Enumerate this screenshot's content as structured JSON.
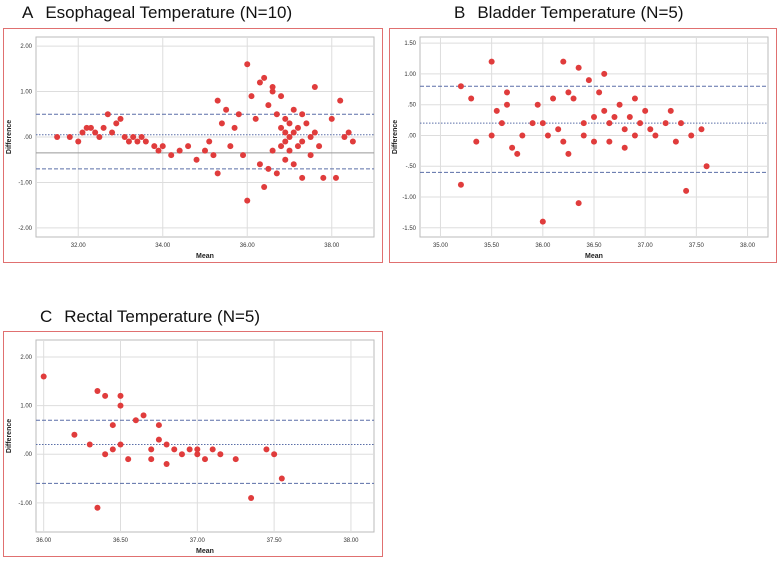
{
  "chart_data": [
    {
      "type": "scatter",
      "panel_letter": "A",
      "title": "Esophageal Temperature (N=10)",
      "xlabel": "Mean",
      "ylabel": "Difference",
      "xlim": [
        31.0,
        39.0
      ],
      "ylim": [
        -2.2,
        2.2
      ],
      "xticks": [
        32,
        34,
        36,
        38
      ],
      "xtick_labels": [
        "32.00",
        "34.00",
        "36.00",
        "38.00"
      ],
      "yticks": [
        2,
        1,
        0,
        -1,
        -2
      ],
      "ytick_labels": [
        "2.00",
        "1.00",
        ".00",
        "-1.00",
        "-2.00"
      ],
      "reference_lines": [
        {
          "y": 0.5,
          "style": "dashed",
          "color": "#5b6fa8"
        },
        {
          "y": 0.05,
          "style": "dotted",
          "color": "#5b6fa8"
        },
        {
          "y": -0.35,
          "style": "solid",
          "color": "#999999"
        },
        {
          "y": -0.7,
          "style": "dashed",
          "color": "#5b6fa8"
        }
      ],
      "point_color": "#e03c3c",
      "points": [
        [
          31.5,
          0.0
        ],
        [
          31.8,
          0.0
        ],
        [
          32.0,
          -0.1
        ],
        [
          32.1,
          0.1
        ],
        [
          32.2,
          0.2
        ],
        [
          32.3,
          0.2
        ],
        [
          32.4,
          0.1
        ],
        [
          32.5,
          0.0
        ],
        [
          32.6,
          0.2
        ],
        [
          32.7,
          0.5
        ],
        [
          32.8,
          0.1
        ],
        [
          32.9,
          0.3
        ],
        [
          33.0,
          0.4
        ],
        [
          33.1,
          0.0
        ],
        [
          33.2,
          -0.1
        ],
        [
          33.3,
          0.0
        ],
        [
          33.4,
          -0.1
        ],
        [
          33.5,
          0.0
        ],
        [
          33.6,
          -0.1
        ],
        [
          33.8,
          -0.2
        ],
        [
          33.9,
          -0.3
        ],
        [
          34.0,
          -0.2
        ],
        [
          34.2,
          -0.4
        ],
        [
          34.4,
          -0.3
        ],
        [
          34.6,
          -0.2
        ],
        [
          34.8,
          -0.5
        ],
        [
          35.0,
          -0.3
        ],
        [
          35.1,
          -0.1
        ],
        [
          35.2,
          -0.4
        ],
        [
          35.3,
          -0.8
        ],
        [
          35.3,
          0.8
        ],
        [
          35.4,
          0.3
        ],
        [
          35.5,
          0.6
        ],
        [
          35.6,
          -0.2
        ],
        [
          35.7,
          0.2
        ],
        [
          35.8,
          0.5
        ],
        [
          35.9,
          -0.4
        ],
        [
          36.0,
          1.6
        ],
        [
          36.0,
          -1.4
        ],
        [
          36.1,
          0.9
        ],
        [
          36.2,
          0.4
        ],
        [
          36.3,
          1.2
        ],
        [
          36.3,
          -0.6
        ],
        [
          36.4,
          1.3
        ],
        [
          36.4,
          -1.1
        ],
        [
          36.5,
          0.7
        ],
        [
          36.5,
          -0.7
        ],
        [
          36.6,
          1.0
        ],
        [
          36.6,
          1.1
        ],
        [
          36.6,
          -0.3
        ],
        [
          36.7,
          0.5
        ],
        [
          36.7,
          -0.8
        ],
        [
          36.8,
          0.9
        ],
        [
          36.8,
          0.2
        ],
        [
          36.8,
          -0.2
        ],
        [
          36.9,
          0.4
        ],
        [
          36.9,
          0.1
        ],
        [
          36.9,
          -0.1
        ],
        [
          36.9,
          -0.5
        ],
        [
          37.0,
          0.0
        ],
        [
          37.0,
          0.3
        ],
        [
          37.0,
          -0.3
        ],
        [
          37.1,
          0.6
        ],
        [
          37.1,
          0.1
        ],
        [
          37.1,
          -0.6
        ],
        [
          37.2,
          0.2
        ],
        [
          37.2,
          -0.2
        ],
        [
          37.3,
          0.5
        ],
        [
          37.3,
          -0.1
        ],
        [
          37.3,
          -0.9
        ],
        [
          37.4,
          0.3
        ],
        [
          37.5,
          0.0
        ],
        [
          37.5,
          -0.4
        ],
        [
          37.6,
          1.1
        ],
        [
          37.6,
          0.1
        ],
        [
          37.7,
          -0.2
        ],
        [
          37.8,
          -0.9
        ],
        [
          38.0,
          0.4
        ],
        [
          38.1,
          -0.9
        ],
        [
          38.2,
          0.8
        ],
        [
          38.3,
          0.0
        ],
        [
          38.4,
          0.1
        ],
        [
          38.5,
          -0.1
        ]
      ]
    },
    {
      "type": "scatter",
      "panel_letter": "B",
      "title": "Bladder Temperature (N=5)",
      "xlabel": "Mean",
      "ylabel": "Difference",
      "xlim": [
        34.8,
        38.2
      ],
      "ylim": [
        -1.65,
        1.6
      ],
      "xticks": [
        35.0,
        35.5,
        36.0,
        36.5,
        37.0,
        37.5,
        38.0
      ],
      "xtick_labels": [
        "35.00",
        "35.50",
        "36.00",
        "36.50",
        "37.00",
        "37.50",
        "38.00"
      ],
      "yticks": [
        1.5,
        1.0,
        0.5,
        0.0,
        -0.5,
        -1.0,
        -1.5
      ],
      "ytick_labels": [
        "1.50",
        "1.00",
        ".50",
        ".00",
        "-.50",
        "-1.00",
        "-1.50"
      ],
      "reference_lines": [
        {
          "y": 0.8,
          "style": "dashed",
          "color": "#5b6fa8"
        },
        {
          "y": 0.2,
          "style": "dotted",
          "color": "#5b6fa8"
        },
        {
          "y": -0.6,
          "style": "dashed",
          "color": "#5b6fa8"
        }
      ],
      "point_color": "#e03c3c",
      "points": [
        [
          35.2,
          0.8
        ],
        [
          35.2,
          -0.8
        ],
        [
          35.3,
          0.6
        ],
        [
          35.35,
          -0.1
        ],
        [
          35.5,
          1.2
        ],
        [
          35.5,
          0.0
        ],
        [
          35.55,
          0.4
        ],
        [
          35.6,
          0.2
        ],
        [
          35.65,
          0.7
        ],
        [
          35.65,
          0.5
        ],
        [
          35.7,
          -0.2
        ],
        [
          35.75,
          -0.3
        ],
        [
          35.8,
          0.0
        ],
        [
          35.9,
          0.2
        ],
        [
          35.95,
          0.5
        ],
        [
          36.0,
          -1.4
        ],
        [
          36.0,
          0.2
        ],
        [
          36.05,
          0.0
        ],
        [
          36.1,
          0.6
        ],
        [
          36.15,
          0.1
        ],
        [
          36.2,
          1.2
        ],
        [
          36.2,
          -0.1
        ],
        [
          36.25,
          0.7
        ],
        [
          36.25,
          -0.3
        ],
        [
          36.3,
          0.6
        ],
        [
          36.35,
          1.1
        ],
        [
          36.35,
          -1.1
        ],
        [
          36.4,
          0.2
        ],
        [
          36.4,
          0.0
        ],
        [
          36.45,
          0.9
        ],
        [
          36.5,
          0.3
        ],
        [
          36.5,
          -0.1
        ],
        [
          36.55,
          0.7
        ],
        [
          36.6,
          1.0
        ],
        [
          36.6,
          0.4
        ],
        [
          36.65,
          0.2
        ],
        [
          36.65,
          -0.1
        ],
        [
          36.7,
          0.3
        ],
        [
          36.75,
          0.5
        ],
        [
          36.8,
          0.1
        ],
        [
          36.8,
          -0.2
        ],
        [
          36.85,
          0.3
        ],
        [
          36.9,
          0.6
        ],
        [
          36.9,
          0.0
        ],
        [
          36.95,
          0.2
        ],
        [
          37.0,
          0.4
        ],
        [
          37.05,
          0.1
        ],
        [
          37.1,
          0.0
        ],
        [
          37.2,
          0.2
        ],
        [
          37.25,
          0.4
        ],
        [
          37.3,
          -0.1
        ],
        [
          37.35,
          0.2
        ],
        [
          37.4,
          -0.9
        ],
        [
          37.45,
          0.0
        ],
        [
          37.55,
          0.1
        ],
        [
          37.6,
          -0.5
        ]
      ]
    },
    {
      "type": "scatter",
      "panel_letter": "C",
      "title": "Rectal Temperature (N=5)",
      "xlabel": "Mean",
      "ylabel": "Difference",
      "xlim": [
        35.95,
        38.15
      ],
      "ylim": [
        -1.6,
        2.35
      ],
      "xticks": [
        36.0,
        36.5,
        37.0,
        37.5,
        38.0
      ],
      "xtick_labels": [
        "36.00",
        "36.50",
        "37.00",
        "37.50",
        "38.00"
      ],
      "yticks": [
        2.0,
        1.0,
        0.0,
        -1.0
      ],
      "ytick_labels": [
        "2.00",
        "1.00",
        ".00",
        "-1.00"
      ],
      "reference_lines": [
        {
          "y": 0.7,
          "style": "dashed",
          "color": "#5b6fa8"
        },
        {
          "y": 0.2,
          "style": "dotted",
          "color": "#5b6fa8"
        },
        {
          "y": -0.6,
          "style": "dashed",
          "color": "#5b6fa8"
        }
      ],
      "point_color": "#e03c3c",
      "points": [
        [
          36.0,
          1.6
        ],
        [
          36.2,
          0.4
        ],
        [
          36.3,
          0.2
        ],
        [
          36.35,
          1.3
        ],
        [
          36.4,
          1.2
        ],
        [
          36.4,
          0.0
        ],
        [
          36.45,
          0.6
        ],
        [
          36.45,
          0.1
        ],
        [
          36.5,
          1.2
        ],
        [
          36.5,
          1.0
        ],
        [
          36.5,
          0.2
        ],
        [
          36.55,
          -0.1
        ],
        [
          36.6,
          0.7
        ],
        [
          36.65,
          0.8
        ],
        [
          36.7,
          0.1
        ],
        [
          36.7,
          -0.1
        ],
        [
          36.75,
          0.6
        ],
        [
          36.8,
          0.2
        ],
        [
          36.85,
          0.1
        ],
        [
          36.9,
          0.0
        ],
        [
          36.95,
          0.1
        ],
        [
          37.0,
          0.0
        ],
        [
          37.05,
          -0.1
        ],
        [
          37.1,
          0.1
        ],
        [
          37.15,
          0.0
        ],
        [
          37.25,
          -0.1
        ],
        [
          37.35,
          -0.9
        ],
        [
          37.45,
          0.1
        ],
        [
          37.5,
          0.0
        ],
        [
          37.55,
          -0.5
        ],
        [
          36.35,
          -1.1
        ],
        [
          36.75,
          0.3
        ],
        [
          36.8,
          -0.2
        ],
        [
          37.0,
          0.1
        ]
      ]
    }
  ]
}
